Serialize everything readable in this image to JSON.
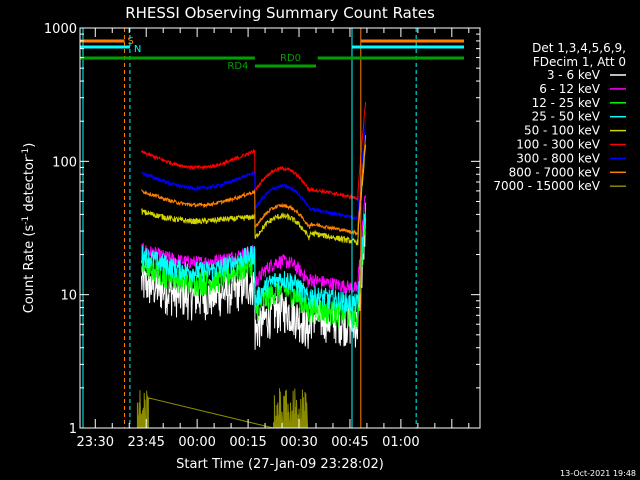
{
  "chart_data": {
    "type": "line",
    "title": "RHESSI Observing Summary Count Rates",
    "ylabel_main": "Count Rate (s",
    "ylabel_sup": "-1",
    "ylabel_rest": " detector",
    "ylabel_end": ")",
    "xlabel": "Start Time (27-Jan-09 23:28:02)",
    "date_stamp": "13-Oct-2021 19:48",
    "y_scale": "log",
    "ylim": [
      1,
      1000
    ],
    "xlim_minutes": [
      23.45,
      1.3
    ],
    "y_ticks": [
      {
        "value": 1,
        "label": "1"
      },
      {
        "value": 10,
        "label": "10"
      },
      {
        "value": 100,
        "label": "100"
      },
      {
        "value": 1000,
        "label": "1000"
      }
    ],
    "x_ticks": [
      {
        "value": 1410,
        "label": "23:30"
      },
      {
        "value": 1425,
        "label": "23:45"
      },
      {
        "value": 1440,
        "label": "00:00"
      },
      {
        "value": 1455,
        "label": "00:15"
      },
      {
        "value": 1470,
        "label": "00:30"
      },
      {
        "value": 1485,
        "label": "00:45"
      },
      {
        "value": 1500,
        "label": "01:00"
      }
    ],
    "legend_header": [
      "Det 1,3,4,5,6,9,",
      "FDecim 1, Att 0"
    ],
    "series": [
      {
        "name": "3 - 6 keV",
        "color": "#ffffff"
      },
      {
        "name": "6 - 12 keV",
        "color": "#ff00ff"
      },
      {
        "name": "12 - 25 keV",
        "color": "#00ff00"
      },
      {
        "name": "25 - 50 keV",
        "color": "#00ffff"
      },
      {
        "name": "50 - 100 keV",
        "color": "#d4d400"
      },
      {
        "name": "100 - 300 keV",
        "color": "#ff0000"
      },
      {
        "name": "300 - 800 keV",
        "color": "#0000ff"
      },
      {
        "name": "800 - 7000 keV",
        "color": "#ff8000"
      },
      {
        "name": "7000 - 15000 keV",
        "color": "#8b8b00"
      }
    ],
    "flag_labels": {
      "saa": "S",
      "night": "N",
      "rd0": "RD0",
      "rd4": "RD4"
    }
  }
}
